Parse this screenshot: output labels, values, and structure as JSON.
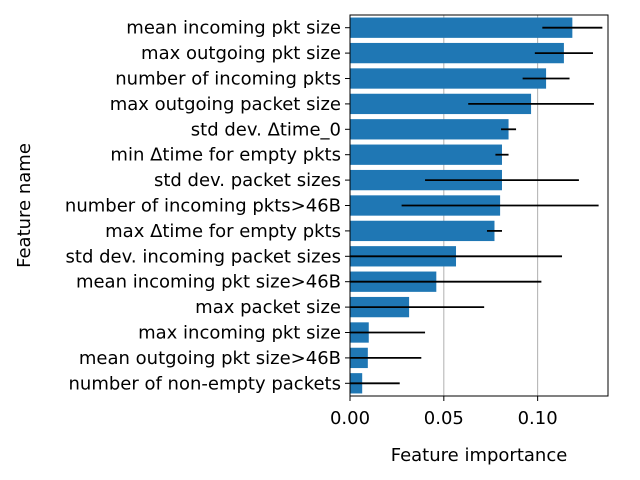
{
  "chart_data": {
    "type": "bar",
    "orientation": "horizontal",
    "title": "",
    "xlabel": "Feature importance",
    "ylabel": "Feature name",
    "xlim": [
      0,
      0.1375
    ],
    "xticks": [
      0.0,
      0.05,
      0.1
    ],
    "xtick_labels": [
      "0.00",
      "0.05",
      "0.10"
    ],
    "grid": "vertical lines at x ticks",
    "bar_color": "#1f77b4",
    "error_bar_color": "#000000",
    "categories": [
      "mean incoming pkt size",
      "max outgoing pkt size",
      "number of incoming pkts",
      "max outgoing packet size",
      "std dev. Δtime_0",
      "min Δtime for empty pkts",
      "std dev. packet sizes",
      "number of incoming pkts>46B",
      "max Δtime for empty pkts",
      "std dev. incoming packet sizes",
      "mean incoming pkt size>46B",
      "max packet size",
      "max incoming pkt size",
      "mean outgoing pkt size>46B",
      "number of non-empty packets"
    ],
    "values": [
      0.1185,
      0.114,
      0.1045,
      0.0965,
      0.0845,
      0.081,
      0.081,
      0.08,
      0.077,
      0.0565,
      0.046,
      0.0315,
      0.01,
      0.0095,
      0.0065
    ],
    "errors": [
      0.016,
      0.0155,
      0.0125,
      0.0335,
      0.004,
      0.0035,
      0.041,
      0.0525,
      0.004,
      0.0565,
      0.056,
      0.04,
      0.03,
      0.0285,
      0.02
    ]
  }
}
